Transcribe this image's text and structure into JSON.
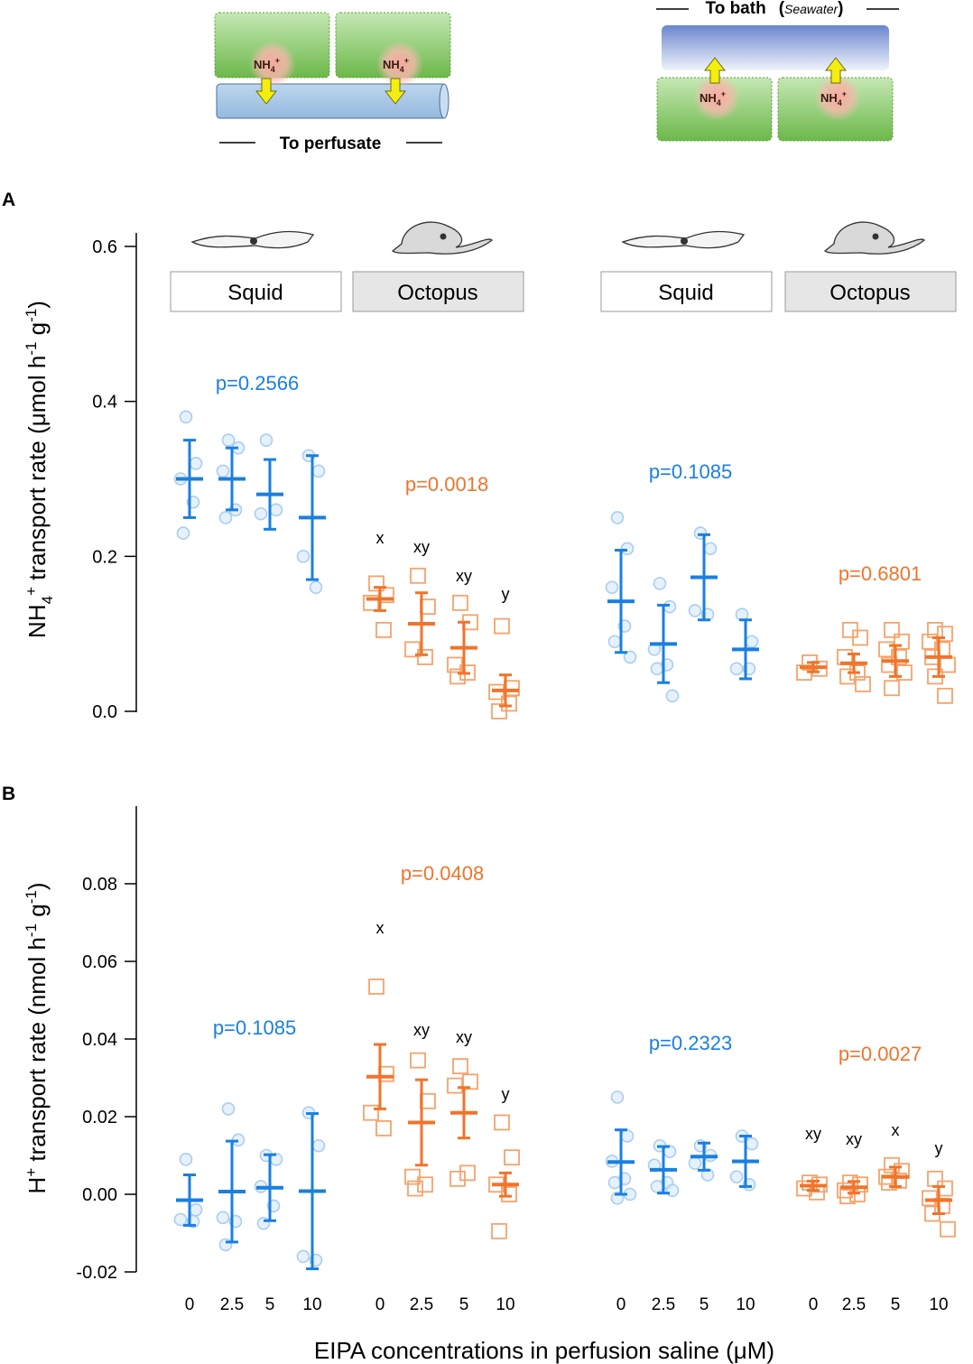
{
  "colors": {
    "squid": "#1a7fe0",
    "squid_light": "#a9cdf2",
    "octopus": "#f0742b",
    "octopus_light": "#f5a36b",
    "cell_green": "#7cc45a",
    "tube_blue": "#a9c8e6",
    "arrow_yellow": "#f4ee10"
  },
  "schematic": {
    "left_caption": "To perfusate",
    "right_caption_main": "To bath",
    "right_caption_paren_open": "(",
    "right_caption_italic": "Seawater",
    "right_caption_paren_close": ")",
    "ion_label": "NH4+"
  },
  "animals": [
    "Squid",
    "Octopus",
    "Squid",
    "Octopus"
  ],
  "shared_xlabel": "EIPA concentrations in perfusion saline (μM)",
  "chart_data": [
    {
      "panel": "A",
      "type": "scatter",
      "ylabel": "NH4+ transport rate (μmol h-1 g-1)",
      "ylim": [
        0,
        0.6
      ],
      "yticks": [
        "0.0",
        "0.2",
        "0.4",
        "0.6"
      ],
      "ytick_values": [
        0,
        0.2,
        0.4,
        0.6
      ],
      "categories": [
        "0",
        "2.5",
        "5",
        "10"
      ],
      "groups": [
        {
          "name": "Squid",
          "color": "squid",
          "marker": "circle",
          "p_value": "p=0.2566",
          "letters": [],
          "series": [
            {
              "x": "0",
              "mean": 0.3,
              "sd": 0.05,
              "points": [
                0.38,
                0.32,
                0.3,
                0.27,
                0.23
              ]
            },
            {
              "x": "2.5",
              "mean": 0.3,
              "sd": 0.04,
              "points": [
                0.35,
                0.34,
                0.31,
                0.26,
                0.25
              ]
            },
            {
              "x": "5",
              "mean": 0.28,
              "sd": 0.045,
              "points": [
                0.35,
                0.26,
                0.255
              ]
            },
            {
              "x": "10",
              "mean": 0.25,
              "sd": 0.08,
              "points": [
                0.33,
                0.31,
                0.2,
                0.16
              ]
            }
          ]
        },
        {
          "name": "Octopus",
          "color": "octopus",
          "marker": "square",
          "p_value": "p=0.0018",
          "letters": [
            "x",
            "xy",
            "xy",
            "y"
          ],
          "series": [
            {
              "x": "0",
              "mean": 0.145,
              "sd": 0.015,
              "points": [
                0.165,
                0.15,
                0.14,
                0.105
              ]
            },
            {
              "x": "2.5",
              "mean": 0.113,
              "sd": 0.04,
              "points": [
                0.175,
                0.135,
                0.08,
                0.07
              ]
            },
            {
              "x": "5",
              "mean": 0.082,
              "sd": 0.033,
              "points": [
                0.14,
                0.115,
                0.06,
                0.05,
                0.045
              ]
            },
            {
              "x": "10",
              "mean": 0.027,
              "sd": 0.02,
              "points": [
                0.11,
                0.03,
                0.025,
                0.01,
                0.0
              ]
            }
          ]
        },
        {
          "name": "Squid",
          "color": "squid",
          "marker": "circle",
          "p_value": "p=0.1085",
          "letters": [],
          "series": [
            {
              "x": "0",
              "mean": 0.142,
              "sd": 0.066,
              "points": [
                0.25,
                0.21,
                0.16,
                0.11,
                0.09,
                0.07
              ]
            },
            {
              "x": "2.5",
              "mean": 0.087,
              "sd": 0.05,
              "points": [
                0.165,
                0.135,
                0.08,
                0.06,
                0.055,
                0.02
              ]
            },
            {
              "x": "5",
              "mean": 0.173,
              "sd": 0.055,
              "points": [
                0.23,
                0.21,
                0.13,
                0.125
              ]
            },
            {
              "x": "10",
              "mean": 0.08,
              "sd": 0.038,
              "points": [
                0.125,
                0.09,
                0.055,
                0.055
              ]
            }
          ]
        },
        {
          "name": "Octopus",
          "color": "octopus",
          "marker": "square",
          "p_value": "p=0.6801",
          "letters": [],
          "series": [
            {
              "x": "0",
              "mean": 0.057,
              "sd": 0.006,
              "points": [
                0.063,
                0.055,
                0.05
              ]
            },
            {
              "x": "2.5",
              "mean": 0.062,
              "sd": 0.012,
              "points": [
                0.105,
                0.095,
                0.07,
                0.05,
                0.045,
                0.035
              ]
            },
            {
              "x": "5",
              "mean": 0.065,
              "sd": 0.02,
              "points": [
                0.105,
                0.09,
                0.08,
                0.07,
                0.06,
                0.05,
                0.03
              ]
            },
            {
              "x": "10",
              "mean": 0.07,
              "sd": 0.025,
              "points": [
                0.105,
                0.1,
                0.09,
                0.08,
                0.07,
                0.06,
                0.045,
                0.02
              ]
            }
          ]
        }
      ]
    },
    {
      "panel": "B",
      "type": "scatter",
      "ylabel": "H+ transport rate (nmol h-1 g-1)",
      "ylim": [
        -0.02,
        0.1
      ],
      "yticks": [
        "-0.02",
        "0.00",
        "0.02",
        "0.04",
        "0.06",
        "0.08"
      ],
      "ytick_values": [
        -0.02,
        0,
        0.02,
        0.04,
        0.06,
        0.08
      ],
      "categories": [
        "0",
        "2.5",
        "5",
        "10"
      ],
      "groups": [
        {
          "name": "Squid",
          "color": "squid",
          "marker": "circle",
          "p_value": "p=0.1085",
          "letters": [],
          "series": [
            {
              "x": "0",
              "mean": -0.0015,
              "sd": 0.0065,
              "points": [
                0.009,
                -0.004,
                -0.0065,
                -0.007
              ]
            },
            {
              "x": "2.5",
              "mean": 0.0007,
              "sd": 0.013,
              "points": [
                0.022,
                0.014,
                -0.006,
                -0.007,
                -0.013
              ]
            },
            {
              "x": "5",
              "mean": 0.0017,
              "sd": 0.0085,
              "points": [
                0.01,
                0.009,
                0.002,
                -0.003,
                -0.0075
              ]
            },
            {
              "x": "10",
              "mean": 0.0008,
              "sd": 0.02,
              "points": [
                0.021,
                0.0125,
                -0.016,
                -0.017
              ]
            }
          ]
        },
        {
          "name": "Octopus",
          "color": "octopus",
          "marker": "square",
          "p_value": "p=0.0408",
          "letters": [
            "x",
            "xy",
            "xy",
            "y"
          ],
          "series": [
            {
              "x": "0",
              "mean": 0.0303,
              "sd": 0.0083,
              "points": [
                0.0535,
                0.031,
                0.021,
                0.017
              ]
            },
            {
              "x": "2.5",
              "mean": 0.0185,
              "sd": 0.011,
              "points": [
                0.0345,
                0.024,
                0.0045,
                0.0025,
                0.0015
              ]
            },
            {
              "x": "5",
              "mean": 0.021,
              "sd": 0.0065,
              "points": [
                0.033,
                0.029,
                0.028,
                0.0055,
                0.004
              ]
            },
            {
              "x": "10",
              "mean": 0.0025,
              "sd": 0.003,
              "points": [
                0.0185,
                0.0095,
                0.0025,
                0.0,
                -0.0095
              ]
            }
          ]
        },
        {
          "name": "Squid",
          "color": "squid",
          "marker": "circle",
          "p_value": "p=0.2323",
          "letters": [],
          "series": [
            {
              "x": "0",
              "mean": 0.0083,
              "sd": 0.0083,
              "points": [
                0.025,
                0.015,
                0.0085,
                0.004,
                0.003,
                0.0,
                -0.001
              ]
            },
            {
              "x": "2.5",
              "mean": 0.0063,
              "sd": 0.006,
              "points": [
                0.0125,
                0.011,
                0.0075,
                0.003,
                0.002,
                0.001
              ]
            },
            {
              "x": "5",
              "mean": 0.0097,
              "sd": 0.0035,
              "points": [
                0.0125,
                0.01,
                0.008,
                0.005
              ]
            },
            {
              "x": "10",
              "mean": 0.0085,
              "sd": 0.0065,
              "points": [
                0.015,
                0.013,
                0.0045,
                0.0025
              ]
            }
          ]
        },
        {
          "name": "Octopus",
          "color": "octopus",
          "marker": "square",
          "p_value": "p=0.0027",
          "letters": [
            "xy",
            "xy",
            "x",
            "y"
          ],
          "series": [
            {
              "x": "0",
              "mean": 0.0022,
              "sd": 0.0012,
              "points": [
                0.003,
                0.0025,
                0.0015,
                0.0005
              ]
            },
            {
              "x": "2.5",
              "mean": 0.0018,
              "sd": 0.0015,
              "points": [
                0.003,
                0.0025,
                0.001,
                0.0,
                -0.0005
              ]
            },
            {
              "x": "5",
              "mean": 0.0045,
              "sd": 0.0025,
              "points": [
                0.0075,
                0.006,
                0.0045,
                0.0035,
                0.003
              ]
            },
            {
              "x": "10",
              "mean": -0.0015,
              "sd": 0.0035,
              "points": [
                0.004,
                0.0015,
                -0.001,
                -0.003,
                -0.005,
                -0.009
              ]
            }
          ]
        }
      ]
    }
  ]
}
